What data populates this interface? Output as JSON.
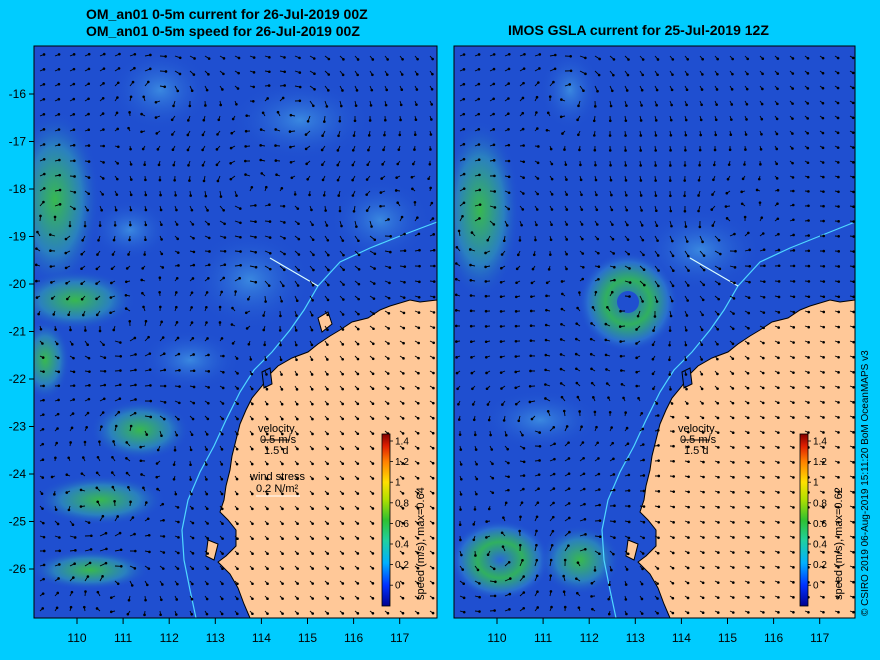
{
  "titles": {
    "left_line1": "OM_an01 0-5m current for 26-Jul-2019 00Z",
    "left_line2": "OM_an01 0-5m speed for 26-Jul-2019 00Z",
    "right": "IMOS GSLA current for 25-Jul-2019 12Z"
  },
  "axes": {
    "lat_ticks": [
      "-16",
      "-17",
      "-18",
      "-19",
      "-20",
      "-21",
      "-22",
      "-23",
      "-24",
      "-25",
      "-26"
    ],
    "lon_ticks": [
      "110",
      "111",
      "112",
      "113",
      "114",
      "115",
      "116",
      "117"
    ]
  },
  "left_panel": {
    "legend": {
      "velocity_label": "velocity",
      "velocity_value": "0.5 m/s",
      "velocity_time": "1.5 d",
      "wind_label": "wind stress",
      "wind_value": "0.2 N/m²"
    },
    "colorbar": {
      "ticks": [
        "1.4",
        "1.2",
        "1",
        "0.8",
        "0.6",
        "0.4",
        "0.2",
        "0"
      ],
      "label": "speed (m/s), max=0.64"
    }
  },
  "right_panel": {
    "legend": {
      "velocity_label": "velocity",
      "velocity_value": "0.5 m/s",
      "velocity_time": "1.5 d"
    },
    "colorbar": {
      "ticks": [
        "1.4",
        "1.2",
        "1",
        "0.8",
        "0.6",
        "0.4",
        "0.2",
        "0"
      ],
      "label": "speed (m/s), max=0.62"
    }
  },
  "credit": "© CSIRO 2019   06-Aug-2019 15:11:20 BoM OceanMAPS v3",
  "colors": {
    "background": "#00ccff",
    "ocean": "#1f4fd0",
    "land": "#ffc898",
    "coastline": "#000000",
    "shelf_line": "#50d8ff"
  }
}
